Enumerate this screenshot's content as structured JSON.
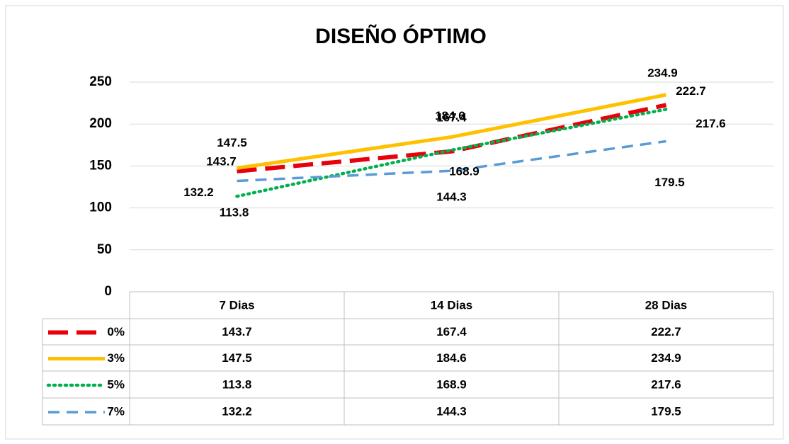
{
  "chart_data": {
    "type": "line",
    "title": "DISEÑO ÓPTIMO",
    "categories": [
      "7 Dias",
      "14 Dias",
      "28 Dias"
    ],
    "series": [
      {
        "name": "0%",
        "color": "#e8000b",
        "values": [
          143.7,
          167.4,
          222.7
        ]
      },
      {
        "name": "3%",
        "color": "#ffc000",
        "values": [
          147.5,
          184.6,
          234.9
        ]
      },
      {
        "name": "5%",
        "color": "#00b050",
        "values": [
          113.8,
          168.9,
          217.6
        ]
      },
      {
        "name": "7%",
        "color": "#5b9bd5",
        "values": [
          132.2,
          144.3,
          179.5
        ]
      }
    ],
    "ylim": [
      0,
      250
    ],
    "yticks": [
      0,
      50,
      100,
      150,
      200,
      250
    ],
    "grid": true,
    "data_table": true
  }
}
